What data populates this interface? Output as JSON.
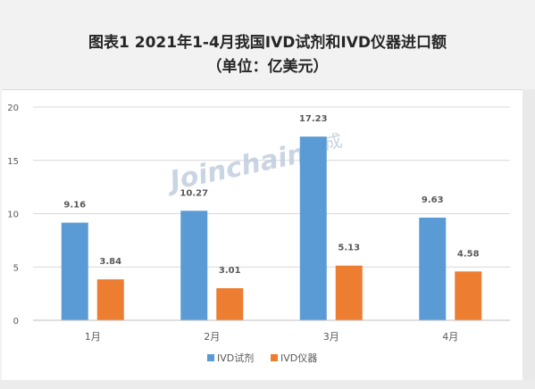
{
  "chart_data": {
    "type": "bar",
    "title": "图表1  2021年1-4月我国IVD试剂和IVD仪器进口额",
    "subtitle": "（单位：亿美元）",
    "categories": [
      "1月",
      "2月",
      "3月",
      "4月"
    ],
    "series": [
      {
        "name": "IVD试剂",
        "values": [
          9.16,
          10.27,
          17.23,
          9.63
        ],
        "color": "#5b9bd5"
      },
      {
        "name": "IVD仪器",
        "values": [
          3.84,
          3.01,
          5.13,
          4.58
        ],
        "color": "#ed7d31"
      }
    ],
    "data_labels": [
      [
        "9.16",
        "10.27",
        "17.23",
        "9.63"
      ],
      [
        "3.84",
        "3.01",
        "5.13",
        "4.58"
      ]
    ],
    "y_ticks": [
      "0",
      "5",
      "10",
      "15",
      "20"
    ],
    "ylim": [
      0,
      20
    ],
    "grid": true,
    "legend_position": "bottom"
  },
  "watermark": {
    "text": "Joinchain",
    "text_cn": "众成"
  }
}
